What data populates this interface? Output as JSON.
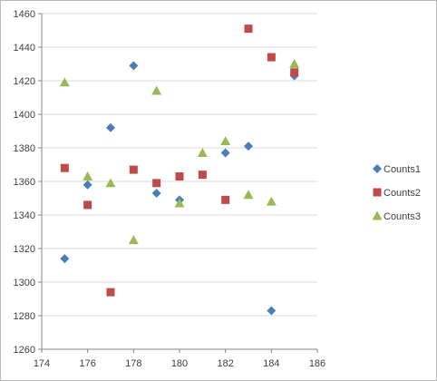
{
  "chart_data": {
    "type": "scatter",
    "title": "",
    "xlabel": "",
    "ylabel": "",
    "xlim": [
      174,
      186
    ],
    "ylim": [
      1260,
      1460
    ],
    "x_ticks": [
      174,
      176,
      178,
      180,
      182,
      184,
      186
    ],
    "y_ticks": [
      1260,
      1280,
      1300,
      1320,
      1340,
      1360,
      1380,
      1400,
      1420,
      1440,
      1460
    ],
    "grid": {
      "horizontal": true,
      "vertical": false
    },
    "legend_position": "right",
    "series": [
      {
        "name": "Counts1",
        "marker": "diamond",
        "color": "#4a7ebb",
        "points": [
          [
            175,
            1314
          ],
          [
            176,
            1358
          ],
          [
            177,
            1392
          ],
          [
            178,
            1429
          ],
          [
            179,
            1353
          ],
          [
            180,
            1349
          ],
          [
            182,
            1377
          ],
          [
            183,
            1381
          ],
          [
            184,
            1283
          ],
          [
            185,
            1423
          ]
        ]
      },
      {
        "name": "Counts2",
        "marker": "square",
        "color": "#be4b48",
        "points": [
          [
            175,
            1368
          ],
          [
            176,
            1346
          ],
          [
            177,
            1294
          ],
          [
            178,
            1367
          ],
          [
            179,
            1359
          ],
          [
            180,
            1363
          ],
          [
            181,
            1364
          ],
          [
            182,
            1349
          ],
          [
            183,
            1451
          ],
          [
            184,
            1434
          ],
          [
            185,
            1425
          ]
        ]
      },
      {
        "name": "Counts3",
        "marker": "triangle",
        "color": "#98b954",
        "points": [
          [
            175,
            1419
          ],
          [
            176,
            1363
          ],
          [
            177,
            1359
          ],
          [
            178,
            1325
          ],
          [
            179,
            1414
          ],
          [
            180,
            1347
          ],
          [
            181,
            1377
          ],
          [
            182,
            1384
          ],
          [
            183,
            1352
          ],
          [
            184,
            1348
          ],
          [
            185,
            1430
          ]
        ]
      }
    ]
  }
}
